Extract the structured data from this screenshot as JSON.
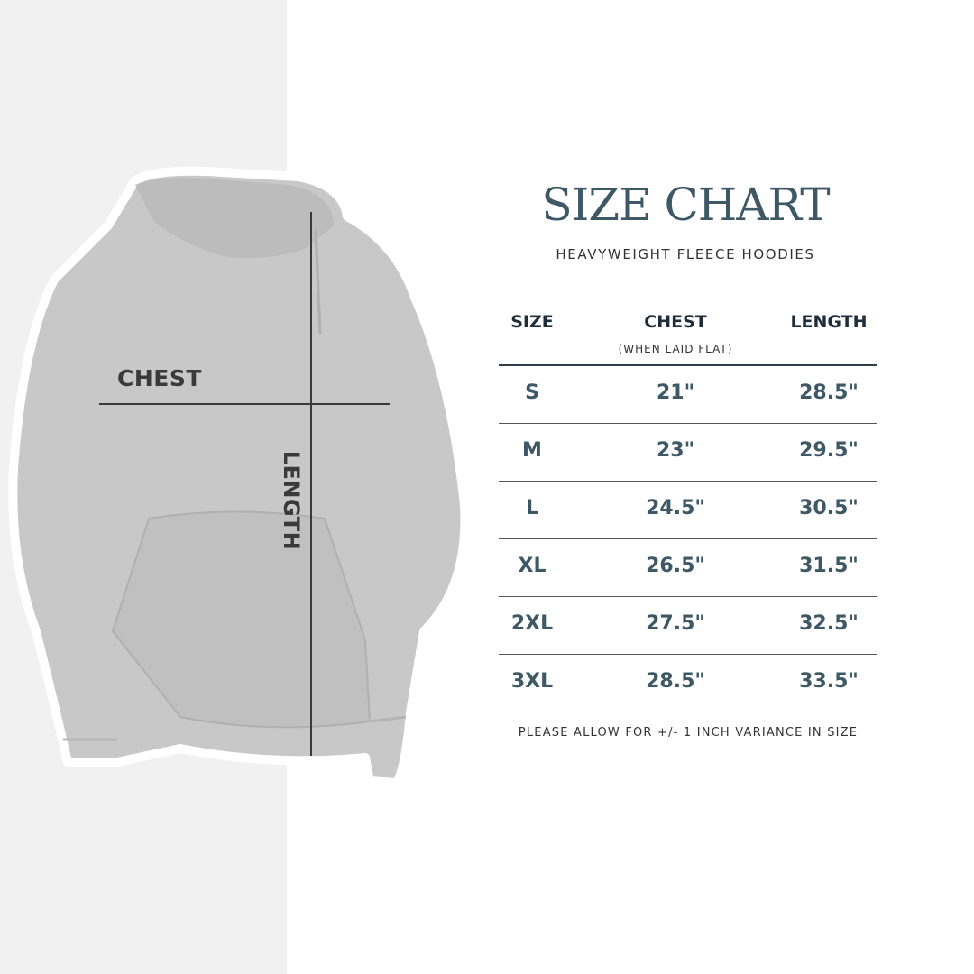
{
  "title": "SIZE CHART",
  "subtitle": "HEAVYWEIGHT FLEECE HOODIES",
  "image_labels": {
    "chest": "CHEST",
    "length": "LENGTH"
  },
  "table": {
    "headers": {
      "size": "SIZE",
      "chest": "CHEST",
      "chest_note": "(WHEN LAID FLAT)",
      "length": "LENGTH"
    },
    "rows": [
      {
        "size": "S",
        "chest": "21\"",
        "length": "28.5\""
      },
      {
        "size": "M",
        "chest": "23\"",
        "length": "29.5\""
      },
      {
        "size": "L",
        "chest": "24.5\"",
        "length": "30.5\""
      },
      {
        "size": "XL",
        "chest": "26.5\"",
        "length": "31.5\""
      },
      {
        "size": "2XL",
        "chest": "27.5\"",
        "length": "32.5\""
      },
      {
        "size": "3XL",
        "chest": "28.5\"",
        "length": "33.5\""
      }
    ]
  },
  "footer": "PLEASE ALLOW FOR +/- 1 INCH VARIANCE IN SIZE",
  "colors": {
    "accent": "#3f5866",
    "header": "#1f2d3a",
    "hoodie": "#c8c8c8",
    "left_panel": "#f1f1f1"
  }
}
